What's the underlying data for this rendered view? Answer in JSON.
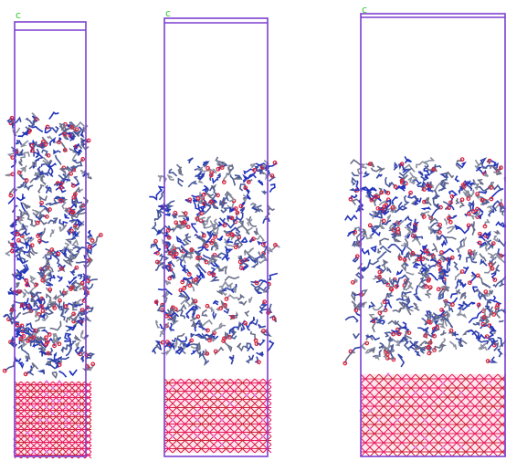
{
  "panels": [
    {
      "axis_label": "c"
    },
    {
      "axis_label": "c"
    },
    {
      "axis_label": "c"
    }
  ]
}
